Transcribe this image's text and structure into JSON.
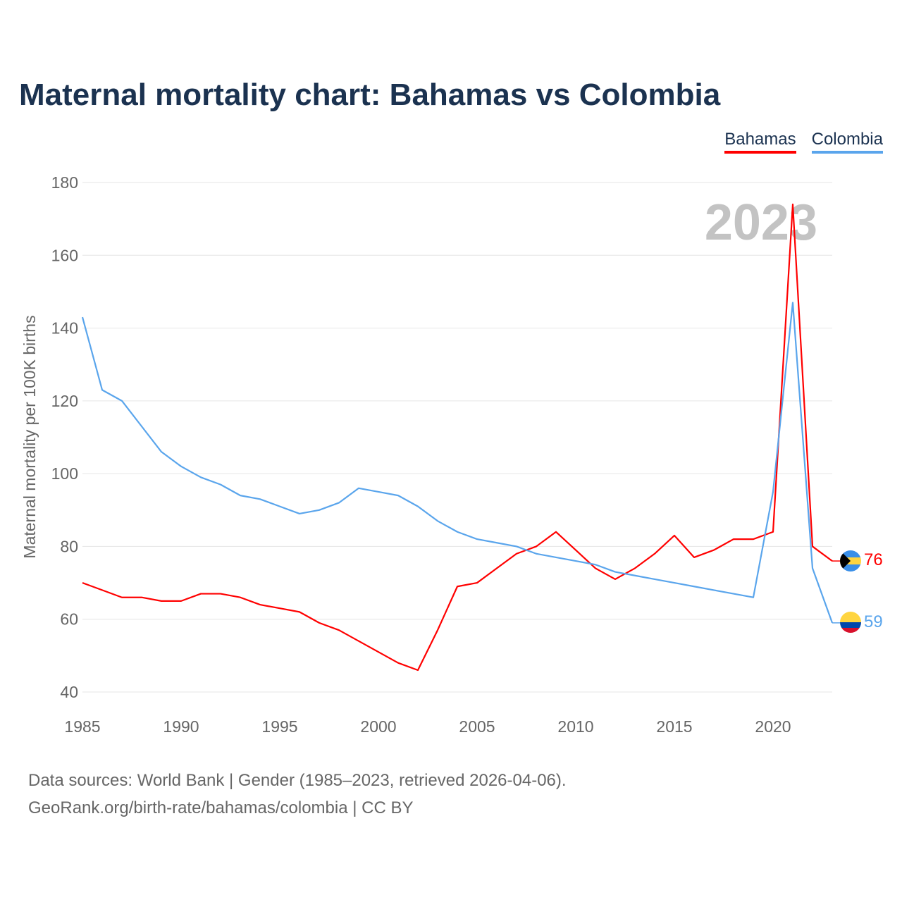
{
  "title": "Maternal mortality chart: Bahamas vs Colombia",
  "footer": {
    "line1": "Data sources: World Bank | Gender (1985–2023, retrieved 2026-04-06).",
    "line2": "GeoRank.org/birth-rate/bahamas/colombia | CC BY"
  },
  "chart_data": {
    "type": "line",
    "title": "Maternal mortality chart: Bahamas vs Colombia",
    "ylabel": "Maternal mortality per 100K births",
    "xlabel": "",
    "year_label": "2023",
    "xlim": [
      1985,
      2023
    ],
    "ylim": [
      40,
      180
    ],
    "yticks": [
      40,
      60,
      80,
      100,
      120,
      140,
      160,
      180
    ],
    "xticks": [
      1985,
      1990,
      1995,
      2000,
      2005,
      2010,
      2015,
      2020
    ],
    "grid": true,
    "legend": "top-right",
    "x": [
      1985,
      1986,
      1987,
      1988,
      1989,
      1990,
      1991,
      1992,
      1993,
      1994,
      1995,
      1996,
      1997,
      1998,
      1999,
      2000,
      2001,
      2002,
      2003,
      2004,
      2005,
      2006,
      2007,
      2008,
      2009,
      2010,
      2011,
      2012,
      2013,
      2014,
      2015,
      2016,
      2017,
      2018,
      2019,
      2020,
      2021,
      2022,
      2023
    ],
    "series": [
      {
        "name": "Bahamas",
        "color": "#ff0000",
        "end_label": "76",
        "values": [
          70,
          68,
          66,
          66,
          65,
          65,
          67,
          67,
          66,
          64,
          63,
          62,
          59,
          57,
          54,
          51,
          48,
          46,
          57,
          69,
          70,
          74,
          78,
          80,
          84,
          79,
          74,
          71,
          74,
          78,
          83,
          77,
          79,
          82,
          82,
          84,
          174,
          80,
          76
        ]
      },
      {
        "name": "Colombia",
        "color": "#5aa5ec",
        "end_label": "59",
        "values": [
          143,
          123,
          120,
          113,
          106,
          102,
          99,
          97,
          94,
          93,
          91,
          89,
          90,
          92,
          96,
          95,
          94,
          91,
          87,
          84,
          82,
          81,
          80,
          78,
          77,
          76,
          75,
          73,
          72,
          71,
          70,
          69,
          68,
          67,
          66,
          95,
          147,
          74,
          59
        ]
      }
    ]
  }
}
